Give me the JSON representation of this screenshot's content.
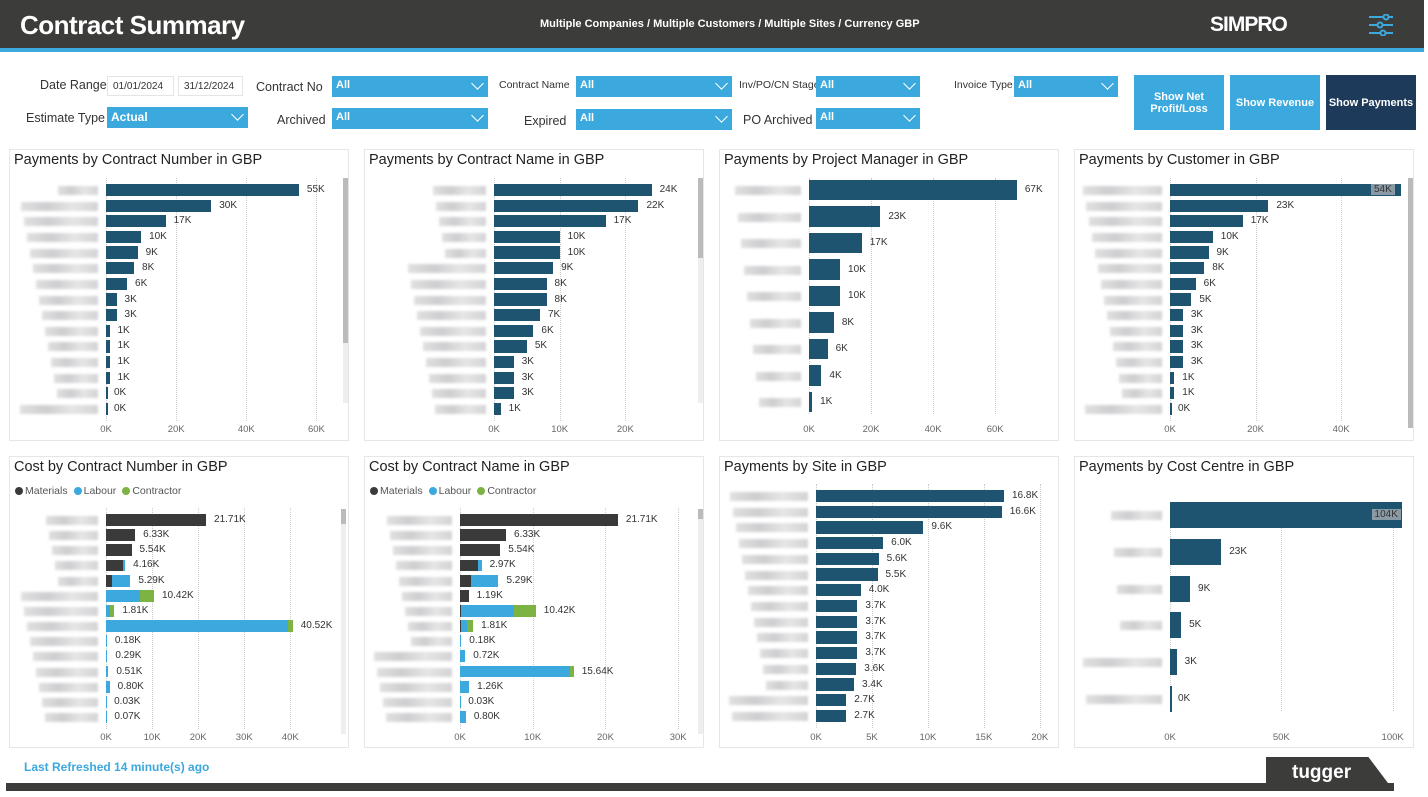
{
  "header": {
    "title": "Contract Summary",
    "subtitle": "Multiple Companies / Multiple Customers / Multiple Sites / Currency GBP",
    "logo": "SIMPRO",
    "settings_icon": "sliders-icon"
  },
  "filters": {
    "date_range": {
      "label": "Date Range",
      "start": "01/01/2024",
      "end": "31/12/2024"
    },
    "estimate_type": {
      "label": "Estimate Type",
      "value": "Actual"
    },
    "contract_no": {
      "label": "Contract No",
      "value": "All"
    },
    "archived": {
      "label": "Archived",
      "value": "All"
    },
    "contract_name": {
      "label": "Contract Name",
      "value": "All"
    },
    "expired": {
      "label": "Expired",
      "value": "All"
    },
    "stage": {
      "label": "Inv/PO/CN Stage",
      "value": "All"
    },
    "po_archived": {
      "label": "PO Archived",
      "value": "All"
    },
    "invoice_type": {
      "label": "Invoice Type",
      "value": "All"
    }
  },
  "buttons": {
    "net": "Show Net Profit/Loss",
    "revenue": "Show Revenue",
    "payments": "Show Payments"
  },
  "colors": {
    "header": "#3c3c3b",
    "accent": "#3ba8de",
    "bar": "#1e5470",
    "active_button": "#1e3a5a",
    "materials": "#3a3a3a",
    "labour": "#3ba8de",
    "contractor": "#7cb342"
  },
  "chart_data": [
    {
      "type": "bar",
      "title": "Payments by Contract Number in GBP",
      "unit": "K",
      "xlim": [
        0,
        67
      ],
      "ticks": [
        "0K",
        "20K",
        "40K",
        "60K"
      ],
      "tick_values": [
        0,
        20,
        40,
        60
      ],
      "values": [
        55,
        30,
        17,
        10,
        9,
        8,
        6,
        3,
        3,
        1,
        1,
        1,
        1,
        0,
        0
      ],
      "labels": [
        "55K",
        "30K",
        "17K",
        "10K",
        "9K",
        "8K",
        "6K",
        "3K",
        "3K",
        "1K",
        "1K",
        "1K",
        "1K",
        "0K",
        "0K"
      ]
    },
    {
      "type": "bar",
      "title": "Payments by Contract Name in GBP",
      "unit": "K",
      "xlim": [
        0,
        30
      ],
      "ticks": [
        "0K",
        "10K",
        "20K"
      ],
      "tick_values": [
        0,
        10,
        20
      ],
      "values": [
        24,
        22,
        17,
        10,
        10,
        9,
        8,
        8,
        7,
        6,
        5,
        3,
        3,
        3,
        1
      ],
      "labels": [
        "24K",
        "22K",
        "17K",
        "10K",
        "10K",
        "9K",
        "8K",
        "8K",
        "7K",
        "6K",
        "5K",
        "3K",
        "3K",
        "3K",
        "1K"
      ]
    },
    {
      "type": "bar",
      "title": "Payments by Project Manager in GBP",
      "unit": "K",
      "xlim": [
        0,
        78
      ],
      "ticks": [
        "0K",
        "20K",
        "40K",
        "60K"
      ],
      "tick_values": [
        0,
        20,
        40,
        60
      ],
      "values": [
        67,
        23,
        17,
        10,
        10,
        8,
        6,
        4,
        1
      ],
      "labels": [
        "67K",
        "23K",
        "17K",
        "10K",
        "10K",
        "8K",
        "6K",
        "4K",
        "1K"
      ]
    },
    {
      "type": "bar",
      "title": "Payments by Customer in GBP",
      "unit": "K",
      "xlim": [
        0,
        54
      ],
      "ticks": [
        "0K",
        "20K",
        "40K"
      ],
      "tick_values": [
        0,
        20,
        40
      ],
      "values": [
        54,
        23,
        17,
        10,
        9,
        8,
        6,
        5,
        3,
        3,
        3,
        3,
        1,
        1,
        0
      ],
      "labels": [
        "54K",
        "23K",
        "17K",
        "10K",
        "9K",
        "8K",
        "6K",
        "5K",
        "3K",
        "3K",
        "3K",
        "3K",
        "1K",
        "1K",
        "0K"
      ]
    },
    {
      "type": "stacked-bar",
      "title": "Cost by Contract Number in GBP",
      "legend": [
        "Materials",
        "Labour",
        "Contractor"
      ],
      "unit": "K",
      "xlim": [
        0,
        51
      ],
      "ticks": [
        "0K",
        "10K",
        "20K",
        "30K",
        "40K"
      ],
      "tick_values": [
        0,
        10,
        20,
        30,
        40
      ],
      "series": [
        {
          "name": "Materials",
          "values": [
            21.71,
            6.33,
            5.54,
            3.7,
            1.4,
            0.1,
            0,
            0,
            0,
            0,
            0,
            0,
            0,
            0
          ]
        },
        {
          "name": "Labour",
          "values": [
            0,
            0,
            0,
            0.46,
            3.89,
            7.3,
            0.8,
            39.5,
            0.18,
            0.29,
            0.51,
            0.8,
            0.03,
            0.07
          ]
        },
        {
          "name": "Contractor",
          "values": [
            0,
            0,
            0,
            0,
            0,
            3.02,
            1.01,
            1.02,
            0,
            0,
            0,
            0,
            0,
            0
          ]
        }
      ],
      "labels": [
        "21.71K",
        "6.33K",
        "5.54K",
        "4.16K",
        "5.29K",
        "10.42K",
        "1.81K",
        "40.52K",
        "0.18K",
        "0.29K",
        "0.51K",
        "0.80K",
        "0.03K",
        "0.07K"
      ]
    },
    {
      "type": "stacked-bar",
      "title": "Cost by Contract Name in GBP",
      "legend": [
        "Materials",
        "Labour",
        "Contractor"
      ],
      "unit": "K",
      "xlim": [
        0,
        33
      ],
      "ticks": [
        "0K",
        "10K",
        "20K",
        "30K"
      ],
      "tick_values": [
        0,
        10,
        20,
        30
      ],
      "series": [
        {
          "name": "Materials",
          "values": [
            21.71,
            6.33,
            5.54,
            2.5,
            1.5,
            1.19,
            0.2,
            0.1,
            0,
            0,
            0,
            0,
            0,
            0
          ]
        },
        {
          "name": "Labour",
          "values": [
            0,
            0,
            0,
            0.47,
            3.79,
            0,
            7.2,
            0.8,
            0.18,
            0.72,
            15.1,
            1.26,
            0.03,
            0.8
          ]
        },
        {
          "name": "Contractor",
          "values": [
            0,
            0,
            0,
            0,
            0,
            0,
            3.02,
            0.91,
            0,
            0,
            0.54,
            0,
            0,
            0
          ]
        }
      ],
      "labels": [
        "21.71K",
        "6.33K",
        "5.54K",
        "2.97K",
        "5.29K",
        "1.19K",
        "10.42K",
        "1.81K",
        "0.18K",
        "0.72K",
        "15.64K",
        "1.26K",
        "0.03K",
        "0.80K"
      ]
    },
    {
      "type": "bar",
      "title": "Payments by Site in GBP",
      "unit": "K",
      "xlim": [
        0,
        21
      ],
      "ticks": [
        "0K",
        "5K",
        "10K",
        "15K",
        "20K"
      ],
      "tick_values": [
        0,
        5,
        10,
        15,
        20
      ],
      "values": [
        16.8,
        16.6,
        9.6,
        6.0,
        5.6,
        5.5,
        4.0,
        3.7,
        3.7,
        3.7,
        3.7,
        3.6,
        3.4,
        2.7,
        2.7
      ],
      "labels": [
        "16.8K",
        "16.6K",
        "9.6K",
        "6.0K",
        "5.6K",
        "5.5K",
        "4.0K",
        "3.7K",
        "3.7K",
        "3.7K",
        "3.7K",
        "3.6K",
        "3.4K",
        "2.7K",
        "2.7K"
      ]
    },
    {
      "type": "bar",
      "title": "Payments by Cost Centre in GBP",
      "unit": "K",
      "xlim": [
        0,
        106
      ],
      "ticks": [
        "0K",
        "50K",
        "100K"
      ],
      "tick_values": [
        0,
        50,
        100
      ],
      "values": [
        104,
        23,
        9,
        5,
        3,
        0
      ],
      "labels": [
        "104K",
        "23K",
        "9K",
        "5K",
        "3K",
        "0K"
      ]
    }
  ],
  "footer": {
    "refresh": "Last Refreshed 14 minute(s) ago",
    "brand": "tugger"
  }
}
